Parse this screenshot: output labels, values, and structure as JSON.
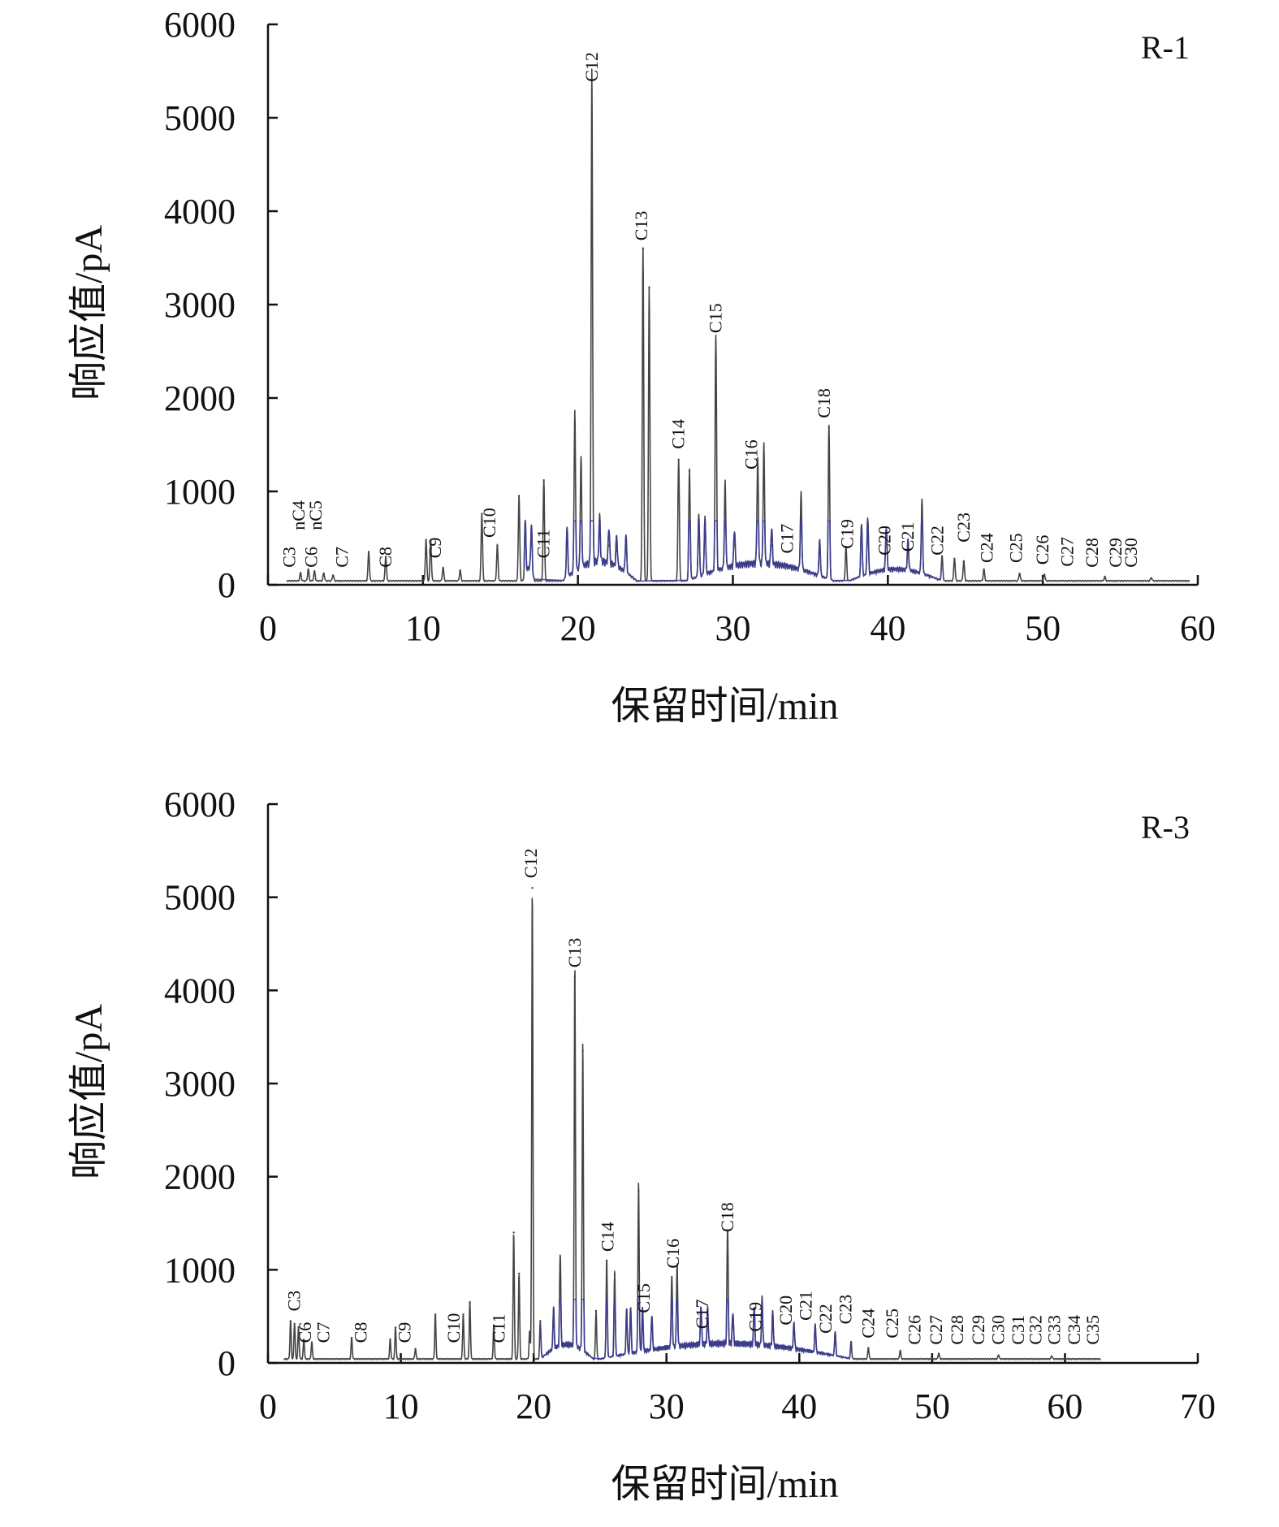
{
  "chart_data": [
    {
      "type": "line",
      "panel_label": "R-1",
      "xlabel": "保留时间/min",
      "ylabel": "响应值/pA",
      "xlim": [
        0,
        60
      ],
      "ylim": [
        0,
        6000
      ],
      "xticks": [
        "0",
        "10",
        "20",
        "30",
        "40",
        "50",
        "60"
      ],
      "yticks": [
        "0",
        "1000",
        "2000",
        "3000",
        "4000",
        "5000",
        "6000"
      ],
      "grid": false,
      "colors": {
        "main_trace": "#444444",
        "unresolved_hump": "#3b3b9a"
      },
      "peaks": [
        [
          2.1,
          120
        ],
        [
          2.6,
          160
        ],
        [
          3.0,
          140
        ],
        [
          3.6,
          120
        ],
        [
          4.2,
          100
        ],
        [
          6.5,
          350
        ],
        [
          7.6,
          300
        ],
        [
          10.2,
          480
        ],
        [
          10.5,
          470
        ],
        [
          11.3,
          180
        ],
        [
          12.4,
          150
        ],
        [
          13.8,
          760
        ],
        [
          14.8,
          420
        ],
        [
          16.2,
          950
        ],
        [
          16.6,
          620
        ],
        [
          17.0,
          520
        ],
        [
          17.8,
          1120
        ],
        [
          19.3,
          560
        ],
        [
          19.8,
          1750
        ],
        [
          20.2,
          1200
        ],
        [
          20.9,
          5300
        ],
        [
          21.4,
          520
        ],
        [
          22.0,
          420
        ],
        [
          22.5,
          360
        ],
        [
          23.1,
          430
        ],
        [
          24.2,
          3600
        ],
        [
          24.6,
          3180
        ],
        [
          26.5,
          1340
        ],
        [
          27.2,
          1220
        ],
        [
          27.8,
          700
        ],
        [
          28.2,
          650
        ],
        [
          28.9,
          2580
        ],
        [
          29.5,
          950
        ],
        [
          30.1,
          420
        ],
        [
          31.6,
          1150
        ],
        [
          32.0,
          1300
        ],
        [
          32.5,
          420
        ],
        [
          34.4,
          850
        ],
        [
          35.6,
          420
        ],
        [
          36.2,
          1680
        ],
        [
          37.3,
          400
        ],
        [
          38.3,
          600
        ],
        [
          38.7,
          650
        ],
        [
          39.9,
          500
        ],
        [
          41.3,
          350
        ],
        [
          42.2,
          820
        ],
        [
          43.5,
          300
        ],
        [
          44.3,
          280
        ],
        [
          44.9,
          250
        ],
        [
          46.2,
          160
        ],
        [
          48.5,
          120
        ],
        [
          50.1,
          110
        ],
        [
          54.0,
          80
        ],
        [
          57.0,
          70
        ]
      ],
      "humps": [
        [
          16.5,
          17.2,
          130
        ],
        [
          19.0,
          23.8,
          200
        ],
        [
          27.0,
          36.5,
          180
        ],
        [
          37.5,
          43.5,
          120
        ]
      ],
      "trace_end_x": 59.5,
      "peak_labels": [
        {
          "text": "C3",
          "x": 1.4,
          "y": 150
        },
        {
          "text": "nC4",
          "x": 2.0,
          "y": 550
        },
        {
          "text": "C6",
          "x": 2.8,
          "y": 150
        },
        {
          "text": "nC5",
          "x": 3.1,
          "y": 550
        },
        {
          "text": "C7",
          "x": 4.8,
          "y": 150
        },
        {
          "text": "C8",
          "x": 7.6,
          "y": 150
        },
        {
          "text": "C9",
          "x": 10.8,
          "y": 250
        },
        {
          "text": "C10",
          "x": 14.3,
          "y": 470
        },
        {
          "text": "C11",
          "x": 17.8,
          "y": 250
        },
        {
          "text": "C12",
          "x": 20.9,
          "y": 5350
        },
        {
          "text": "C13",
          "x": 24.1,
          "y": 3650
        },
        {
          "text": "C14",
          "x": 26.5,
          "y": 1420
        },
        {
          "text": "C15",
          "x": 28.9,
          "y": 2660
        },
        {
          "text": "C16",
          "x": 31.2,
          "y": 1200
        },
        {
          "text": "C17",
          "x": 33.5,
          "y": 300
        },
        {
          "text": "C18",
          "x": 35.9,
          "y": 1750
        },
        {
          "text": "C19",
          "x": 37.4,
          "y": 350
        },
        {
          "text": "C20",
          "x": 39.8,
          "y": 280
        },
        {
          "text": "C21",
          "x": 41.3,
          "y": 320
        },
        {
          "text": "C22",
          "x": 43.2,
          "y": 280
        },
        {
          "text": "C23",
          "x": 44.9,
          "y": 420
        },
        {
          "text": "C24",
          "x": 46.4,
          "y": 200
        },
        {
          "text": "C25",
          "x": 48.3,
          "y": 200
        },
        {
          "text": "C26",
          "x": 50.0,
          "y": 180
        },
        {
          "text": "C27",
          "x": 51.6,
          "y": 160
        },
        {
          "text": "C28",
          "x": 53.2,
          "y": 150
        },
        {
          "text": "C29",
          "x": 54.7,
          "y": 150
        },
        {
          "text": "C30",
          "x": 55.7,
          "y": 150
        }
      ]
    },
    {
      "type": "line",
      "panel_label": "R-3",
      "xlabel": "保留时间/min",
      "ylabel": "响应值/pA",
      "xlim": [
        0,
        70
      ],
      "ylim": [
        0,
        6000
      ],
      "xticks": [
        "0",
        "10",
        "20",
        "30",
        "40",
        "50",
        "60",
        "70"
      ],
      "yticks": [
        "0",
        "1000",
        "2000",
        "3000",
        "4000",
        "5000",
        "6000"
      ],
      "grid": false,
      "colors": {
        "main_trace": "#444444",
        "unresolved_hump": "#3b3b9a"
      },
      "peaks": [
        [
          1.7,
          450
        ],
        [
          2.0,
          420
        ],
        [
          2.3,
          380
        ],
        [
          2.7,
          250
        ],
        [
          3.3,
          220
        ],
        [
          6.3,
          270
        ],
        [
          9.2,
          250
        ],
        [
          9.6,
          380
        ],
        [
          11.1,
          150
        ],
        [
          12.6,
          520
        ],
        [
          14.7,
          520
        ],
        [
          15.2,
          650
        ],
        [
          17.0,
          400
        ],
        [
          18.5,
          1400
        ],
        [
          18.9,
          960
        ],
        [
          19.7,
          330
        ],
        [
          19.9,
          5100
        ],
        [
          20.5,
          450
        ],
        [
          21.5,
          480
        ],
        [
          22.0,
          1050
        ],
        [
          23.1,
          4150
        ],
        [
          23.7,
          3350
        ],
        [
          24.7,
          560
        ],
        [
          25.5,
          1100
        ],
        [
          26.1,
          950
        ],
        [
          27.0,
          520
        ],
        [
          27.3,
          540
        ],
        [
          27.9,
          1850
        ],
        [
          28.2,
          500
        ],
        [
          28.9,
          420
        ],
        [
          30.4,
          800
        ],
        [
          30.8,
          920
        ],
        [
          32.6,
          460
        ],
        [
          33.1,
          420
        ],
        [
          34.6,
          1300
        ],
        [
          35.0,
          380
        ],
        [
          36.6,
          450
        ],
        [
          37.2,
          550
        ],
        [
          38.0,
          400
        ],
        [
          39.6,
          320
        ],
        [
          41.2,
          340
        ],
        [
          42.7,
          300
        ],
        [
          43.9,
          220
        ],
        [
          45.2,
          160
        ],
        [
          47.6,
          130
        ],
        [
          50.5,
          100
        ],
        [
          55.0,
          80
        ],
        [
          59.0,
          70
        ]
      ],
      "humps": [
        [
          20.5,
          24.5,
          150
        ],
        [
          25.0,
          44.0,
          160
        ]
      ],
      "trace_end_x": 62.7,
      "peak_labels": [
        {
          "text": "C3",
          "x": 2.0,
          "y": 520
        },
        {
          "text": "C6",
          "x": 2.8,
          "y": 180
        },
        {
          "text": "C7",
          "x": 4.2,
          "y": 180
        },
        {
          "text": "C8",
          "x": 7.0,
          "y": 180
        },
        {
          "text": "C9",
          "x": 10.3,
          "y": 180
        },
        {
          "text": "C10",
          "x": 14.0,
          "y": 180
        },
        {
          "text": "C11",
          "x": 17.4,
          "y": 180
        },
        {
          "text": "C12",
          "x": 19.8,
          "y": 5170
        },
        {
          "text": "C13",
          "x": 23.1,
          "y": 4210
        },
        {
          "text": "C14",
          "x": 25.6,
          "y": 1160
        },
        {
          "text": "C15",
          "x": 28.3,
          "y": 500
        },
        {
          "text": "C16",
          "x": 30.5,
          "y": 980
        },
        {
          "text": "C17",
          "x": 32.7,
          "y": 330
        },
        {
          "text": "C18",
          "x": 34.6,
          "y": 1370
        },
        {
          "text": "C19",
          "x": 36.7,
          "y": 300
        },
        {
          "text": "C20",
          "x": 39.0,
          "y": 370
        },
        {
          "text": "C21",
          "x": 40.5,
          "y": 420
        },
        {
          "text": "C22",
          "x": 42.0,
          "y": 280
        },
        {
          "text": "C23",
          "x": 43.5,
          "y": 380
        },
        {
          "text": "C24",
          "x": 45.2,
          "y": 230
        },
        {
          "text": "C25",
          "x": 47.0,
          "y": 230
        },
        {
          "text": "C26",
          "x": 48.7,
          "y": 160
        },
        {
          "text": "C27",
          "x": 50.3,
          "y": 160
        },
        {
          "text": "C28",
          "x": 51.9,
          "y": 160
        },
        {
          "text": "C29",
          "x": 53.5,
          "y": 160
        },
        {
          "text": "C30",
          "x": 55.0,
          "y": 160
        },
        {
          "text": "C31",
          "x": 56.5,
          "y": 160
        },
        {
          "text": "C32",
          "x": 57.8,
          "y": 160
        },
        {
          "text": "C33",
          "x": 59.2,
          "y": 160
        },
        {
          "text": "C34",
          "x": 60.7,
          "y": 160
        },
        {
          "text": "C35",
          "x": 62.1,
          "y": 160
        }
      ]
    }
  ]
}
